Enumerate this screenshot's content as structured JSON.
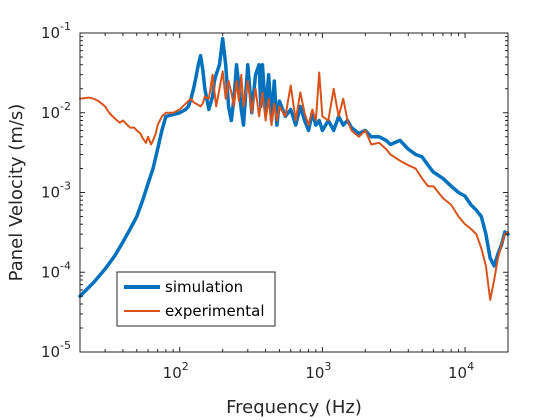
{
  "chart_data": {
    "type": "line",
    "xlabel": "Frequency (Hz)",
    "ylabel": "Panel Velocity (m/s)",
    "x_scale": "log",
    "y_scale": "log",
    "xlim": [
      20,
      20000
    ],
    "ylim": [
      1e-05,
      0.1
    ],
    "x_ticks": [
      {
        "value": 100,
        "label": "10",
        "exp": "2"
      },
      {
        "value": 1000,
        "label": "10",
        "exp": "3"
      },
      {
        "value": 10000,
        "label": "10",
        "exp": "4"
      }
    ],
    "y_ticks": [
      {
        "value": 1e-05,
        "label": "10",
        "exp": "-5"
      },
      {
        "value": 0.0001,
        "label": "10",
        "exp": "-4"
      },
      {
        "value": 0.001,
        "label": "10",
        "exp": "-3"
      },
      {
        "value": 0.01,
        "label": "10",
        "exp": "-2"
      },
      {
        "value": 0.1,
        "label": "10",
        "exp": "-1"
      }
    ],
    "grid": false,
    "legend_position": "lower-left",
    "series": [
      {
        "name": "simulation",
        "color": "#0072BD",
        "x": [
          20,
          25,
          30,
          35,
          40,
          45,
          50,
          55,
          60,
          65,
          70,
          75,
          80,
          90,
          100,
          110,
          115,
          120,
          125,
          130,
          135,
          140,
          145,
          150,
          160,
          170,
          175,
          180,
          190,
          200,
          210,
          220,
          230,
          240,
          250,
          260,
          270,
          280,
          300,
          320,
          340,
          360,
          370,
          380,
          400,
          420,
          440,
          460,
          480,
          500,
          550,
          600,
          650,
          700,
          750,
          800,
          850,
          900,
          950,
          1000,
          1100,
          1200,
          1300,
          1400,
          1500,
          1600,
          1800,
          2000,
          2200,
          2500,
          2800,
          3000,
          3500,
          4000,
          4500,
          5000,
          5500,
          6000,
          7000,
          8000,
          9000,
          10000,
          11000,
          12000,
          13000,
          14000,
          15000,
          16000,
          17000,
          18000,
          19000,
          20000
        ],
        "y": [
          5e-05,
          7.5e-05,
          0.00011,
          0.00016,
          0.00024,
          0.00035,
          0.0005,
          0.0008,
          0.0013,
          0.002,
          0.0035,
          0.006,
          0.009,
          0.0095,
          0.01,
          0.011,
          0.012,
          0.015,
          0.02,
          0.028,
          0.04,
          0.052,
          0.035,
          0.02,
          0.011,
          0.016,
          0.025,
          0.03,
          0.04,
          0.085,
          0.04,
          0.012,
          0.008,
          0.015,
          0.04,
          0.022,
          0.011,
          0.007,
          0.04,
          0.01,
          0.03,
          0.04,
          0.012,
          0.04,
          0.01,
          0.03,
          0.008,
          0.025,
          0.007,
          0.014,
          0.009,
          0.011,
          0.007,
          0.012,
          0.008,
          0.006,
          0.01,
          0.007,
          0.008,
          0.006,
          0.008,
          0.006,
          0.009,
          0.007,
          0.008,
          0.0065,
          0.0055,
          0.006,
          0.005,
          0.005,
          0.0045,
          0.004,
          0.0045,
          0.0035,
          0.003,
          0.0028,
          0.0022,
          0.0018,
          0.0015,
          0.0012,
          0.001,
          0.0009,
          0.0007,
          0.0006,
          0.0005,
          0.0003,
          0.00015,
          0.00012,
          0.00017,
          0.00022,
          0.00032,
          0.0003
        ]
      },
      {
        "name": "experimental",
        "color": "#D95319",
        "x": [
          20,
          23,
          25,
          27,
          30,
          32,
          35,
          38,
          40,
          43,
          45,
          48,
          50,
          53,
          55,
          58,
          60,
          63,
          65,
          68,
          70,
          75,
          80,
          90,
          100,
          110,
          115,
          120,
          125,
          130,
          135,
          140,
          145,
          150,
          160,
          170,
          180,
          190,
          200,
          210,
          220,
          230,
          240,
          250,
          260,
          270,
          280,
          300,
          320,
          340,
          360,
          380,
          400,
          420,
          440,
          460,
          480,
          500,
          550,
          600,
          650,
          700,
          750,
          800,
          850,
          900,
          950,
          1000,
          1100,
          1200,
          1300,
          1400,
          1500,
          1600,
          1800,
          2000,
          2200,
          2500,
          2800,
          3000,
          3500,
          4000,
          4500,
          5000,
          5500,
          6000,
          7000,
          8000,
          9000,
          10000,
          11000,
          12000,
          13000,
          14000,
          15000,
          16000,
          17000,
          18000,
          19000,
          20000
        ],
        "y": [
          0.015,
          0.0155,
          0.015,
          0.014,
          0.012,
          0.01,
          0.0085,
          0.0075,
          0.008,
          0.007,
          0.0065,
          0.0065,
          0.006,
          0.0055,
          0.0048,
          0.0042,
          0.005,
          0.004,
          0.0045,
          0.0055,
          0.007,
          0.009,
          0.01,
          0.01,
          0.011,
          0.013,
          0.014,
          0.015,
          0.0135,
          0.013,
          0.0125,
          0.012,
          0.013,
          0.016,
          0.015,
          0.03,
          0.012,
          0.02,
          0.033,
          0.015,
          0.025,
          0.018,
          0.012,
          0.025,
          0.014,
          0.03,
          0.012,
          0.025,
          0.01,
          0.02,
          0.009,
          0.018,
          0.008,
          0.015,
          0.007,
          0.013,
          0.008,
          0.012,
          0.009,
          0.022,
          0.008,
          0.018,
          0.01,
          0.007,
          0.011,
          0.008,
          0.032,
          0.009,
          0.008,
          0.02,
          0.009,
          0.015,
          0.008,
          0.006,
          0.005,
          0.006,
          0.004,
          0.0042,
          0.0035,
          0.003,
          0.0025,
          0.0022,
          0.002,
          0.0015,
          0.0012,
          0.0012,
          0.00085,
          0.0007,
          0.0005,
          0.0004,
          0.00035,
          0.0003,
          0.0002,
          0.00012,
          4.5e-05,
          8e-05,
          0.00015,
          0.00022,
          0.0003,
          0.00032
        ]
      }
    ]
  }
}
